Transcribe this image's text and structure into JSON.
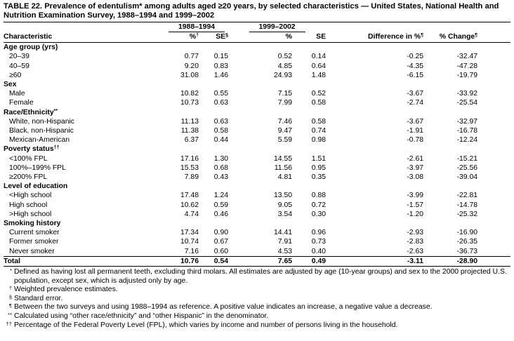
{
  "title": "TABLE 22. Prevalence of edentulism* among adults aged ≥20 years, by selected characteristics — United States, National Health and Nutrition Examination Survey, 1988–1994 and 1999–2002",
  "table": {
    "groups": [
      "1988–1994",
      "1999–2002"
    ],
    "columns": [
      {
        "text": "Characteristic"
      },
      {
        "text": "%",
        "mark": "†"
      },
      {
        "text": "SE",
        "mark": "§"
      },
      {
        "text": "%"
      },
      {
        "text": "SE"
      },
      {
        "text": "Difference in %",
        "mark": "¶"
      },
      {
        "text": "% Change",
        "mark": "¶"
      }
    ],
    "sections": [
      {
        "title": "Age group (yrs)",
        "rows": [
          {
            "label": "20–39",
            "values": [
              "0.77",
              "0.15",
              "0.52",
              "0.14",
              "-0.25",
              "-32.47"
            ]
          },
          {
            "label": "40–59",
            "values": [
              "9.20",
              "0.83",
              "4.85",
              "0.64",
              "-4.35",
              "-47.28"
            ]
          },
          {
            "label": "≥60",
            "values": [
              "31.08",
              "1.46",
              "24.93",
              "1.48",
              "-6.15",
              "-19.79"
            ]
          }
        ]
      },
      {
        "title": "Sex",
        "rows": [
          {
            "label": "Male",
            "values": [
              "10.82",
              "0.55",
              "7.15",
              "0.52",
              "-3.67",
              "-33.92"
            ]
          },
          {
            "label": "Female",
            "values": [
              "10.73",
              "0.63",
              "7.99",
              "0.58",
              "-2.74",
              "-25.54"
            ]
          }
        ]
      },
      {
        "title": "Race/Ethnicity",
        "mark": "**",
        "rows": [
          {
            "label": "White, non-Hispanic",
            "values": [
              "11.13",
              "0.63",
              "7.46",
              "0.58",
              "-3.67",
              "-32.97"
            ]
          },
          {
            "label": "Black, non-Hispanic",
            "values": [
              "11.38",
              "0.58",
              "9.47",
              "0.74",
              "-1.91",
              "-16.78"
            ]
          },
          {
            "label": "Mexican-American",
            "values": [
              "6.37",
              "0.44",
              "5.59",
              "0.98",
              "-0.78",
              "-12.24"
            ]
          }
        ]
      },
      {
        "title": "Poverty status",
        "mark": "††",
        "rows": [
          {
            "label": "<100% FPL",
            "values": [
              "17.16",
              "1.30",
              "14.55",
              "1.51",
              "-2.61",
              "-15.21"
            ]
          },
          {
            "label": "100%–199% FPL",
            "values": [
              "15.53",
              "0.68",
              "11.56",
              "0.95",
              "-3.97",
              "-25.56"
            ]
          },
          {
            "label": "≥200% FPL",
            "values": [
              "7.89",
              "0.43",
              "4.81",
              "0.35",
              "-3.08",
              "-39.04"
            ]
          }
        ]
      },
      {
        "title": "Level of education",
        "rows": [
          {
            "label": "<High school",
            "values": [
              "17.48",
              "1.24",
              "13.50",
              "0.88",
              "-3.99",
              "-22.81"
            ]
          },
          {
            "label": "High school",
            "values": [
              "10.62",
              "0.59",
              "9.05",
              "0.72",
              "-1.57",
              "-14.78"
            ]
          },
          {
            "label": ">High school",
            "values": [
              "4.74",
              "0.46",
              "3.54",
              "0.30",
              "-1.20",
              "-25.32"
            ]
          }
        ]
      },
      {
        "title": "Smoking history",
        "rows": [
          {
            "label": "Current smoker",
            "values": [
              "17.34",
              "0.90",
              "14.41",
              "0.96",
              "-2.93",
              "-16.90"
            ]
          },
          {
            "label": "Former smoker",
            "values": [
              "10.74",
              "0.67",
              "7.91",
              "0.73",
              "-2.83",
              "-26.35"
            ]
          },
          {
            "label": "Never smoker",
            "values": [
              "7.16",
              "0.60",
              "4.53",
              "0.40",
              "-2.63",
              "-36.73"
            ]
          }
        ]
      }
    ],
    "total": {
      "label": "Total",
      "values": [
        "10.76",
        "0.54",
        "7.65",
        "0.49",
        "-3.11",
        "-28.90"
      ]
    }
  },
  "footnotes": [
    {
      "mark": "*",
      "text": "Defined as having lost all permanent teeth, excluding third molars. All estimates are adjusted by age (10-year groups) and sex to the 2000 projected U.S. population, except sex, which is adjusted only by age."
    },
    {
      "mark": "†",
      "text": "Weighted prevalence estimates."
    },
    {
      "mark": "§",
      "text": "Standard error."
    },
    {
      "mark": "¶",
      "text": "Between the two surveys and using 1988–1994 as reference. A positive value indicates an increase, a negative value a decrease."
    },
    {
      "mark": "**",
      "text": "Calculated using “other race/ethnicity” and “other Hispanic” in the denominator."
    },
    {
      "mark": "††",
      "text": "Percentage of the Federal Poverty Level (FPL), which varies by income and number of persons living in the household."
    }
  ]
}
